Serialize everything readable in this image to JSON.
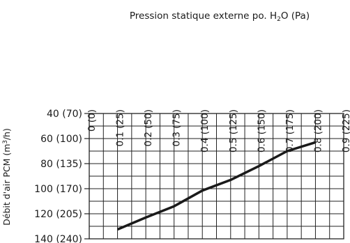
{
  "chart_data": {
    "type": "line",
    "title": "",
    "xlabel": {
      "prefix": "Pression statique externe po. H",
      "subscript": "2",
      "suffix": "O (Pa)"
    },
    "ylabel": {
      "prefix": "Débit d'air PCM (m",
      "superscript": "3",
      "suffix": "/h)"
    },
    "x_tick_values": [
      0,
      0.1,
      0.2,
      0.3,
      0.4,
      0.5,
      0.6,
      0.7,
      0.8,
      0.9
    ],
    "x_tick_labels": [
      "0 (0)",
      "0.1 (25)",
      "0.2 (50)",
      "0.3 (75)",
      "0.4 (100)",
      "0.5 (125)",
      "0.6 (150)",
      "0.7 (175)",
      "0.8 (200)",
      "0.9 (225)"
    ],
    "y_tick_values": [
      40,
      60,
      80,
      100,
      120,
      140
    ],
    "y_tick_labels": [
      "40 (70)",
      "60 (100)",
      "80 (135)",
      "100 (170)",
      "120 (205)",
      "140 (240)"
    ],
    "xlim": [
      0,
      0.9
    ],
    "ylim": [
      40,
      140
    ],
    "y_inverted": true,
    "x_axis_position": "top",
    "grid": true,
    "series": [
      {
        "color": "#1a1a1a",
        "x": [
          0.1,
          0.2,
          0.3,
          0.4,
          0.5,
          0.6,
          0.7,
          0.8
        ],
        "y": [
          132.5,
          123,
          114,
          101.5,
          93,
          82,
          70,
          63
        ]
      }
    ]
  }
}
